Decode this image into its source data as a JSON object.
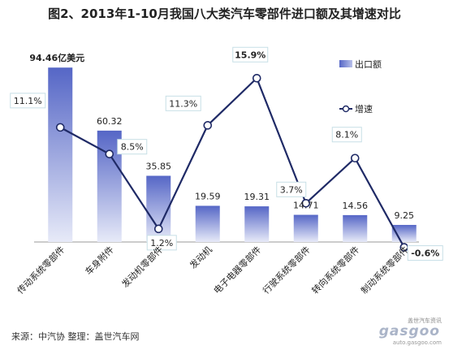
{
  "chart_data": {
    "type": "bar",
    "title": "图2、2013年1-10月我国八大类汽车零部件进口额及其增速对比",
    "categories": [
      "传动系统零部件",
      "车身附件",
      "发动机零部件",
      "发动机",
      "电子电器零部件",
      "行驶系统零部件",
      "转向系统零部件",
      "制动系统零部件"
    ],
    "series": [
      {
        "name": "出口额",
        "type": "bar",
        "values": [
          94.46,
          60.32,
          35.85,
          19.59,
          19.31,
          14.71,
          14.56,
          9.25
        ],
        "labels": [
          "94.46亿美元",
          "60.32",
          "35.85",
          "19.59",
          "19.31",
          "14.71",
          "14.56",
          "9.25"
        ],
        "color": "#5b6dc9"
      },
      {
        "name": "增速",
        "type": "line",
        "values": [
          11.1,
          8.5,
          1.2,
          11.3,
          15.9,
          3.7,
          8.1,
          -0.6
        ],
        "labels": [
          "11.1%",
          "8.5%",
          "1.2%",
          "11.3%",
          "15.9%",
          "3.7%",
          "8.1%",
          "-0.6%"
        ],
        "color": "#1f2a66"
      }
    ],
    "grid": false,
    "legend_position": "top-right"
  },
  "source_note": "来源：中汽协  整理：盖世汽车网",
  "watermark": {
    "top_text": "盖世汽车资讯",
    "logo_text": "gasgoo",
    "url_text": "auto.gasgoo.com"
  }
}
